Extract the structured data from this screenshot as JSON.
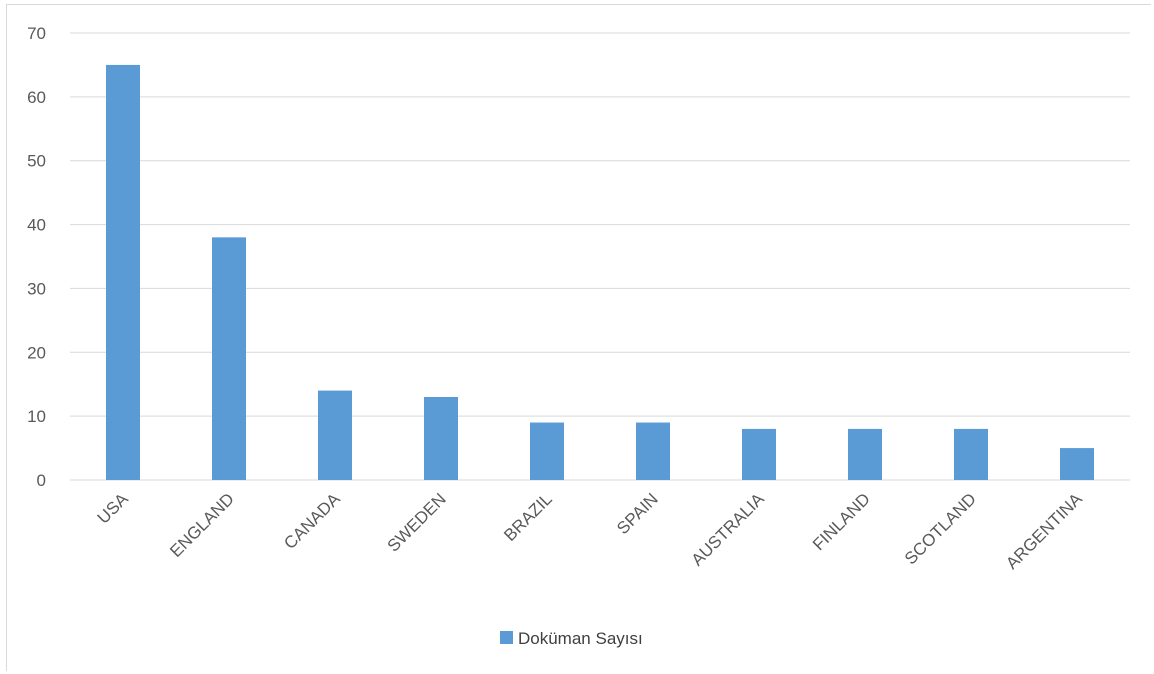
{
  "chart_data": {
    "type": "bar",
    "categories": [
      "USA",
      "ENGLAND",
      "CANADA",
      "SWEDEN",
      "BRAZIL",
      "SPAIN",
      "AUSTRALIA",
      "FINLAND",
      "SCOTLAND",
      "ARGENTINA"
    ],
    "series": [
      {
        "name": "Doküman Sayısı",
        "values": [
          65,
          38,
          14,
          13,
          9,
          9,
          8,
          8,
          8,
          5
        ]
      }
    ],
    "title": "",
    "xlabel": "",
    "ylabel": "",
    "ylim": [
      0,
      70
    ],
    "yticks": [
      0,
      10,
      20,
      30,
      40,
      50,
      60,
      70
    ],
    "grid": true,
    "legend": "bottom",
    "colors": {
      "bar": "#5B9BD5",
      "grid": "#d9d9d9",
      "axis_text": "#595959"
    }
  }
}
